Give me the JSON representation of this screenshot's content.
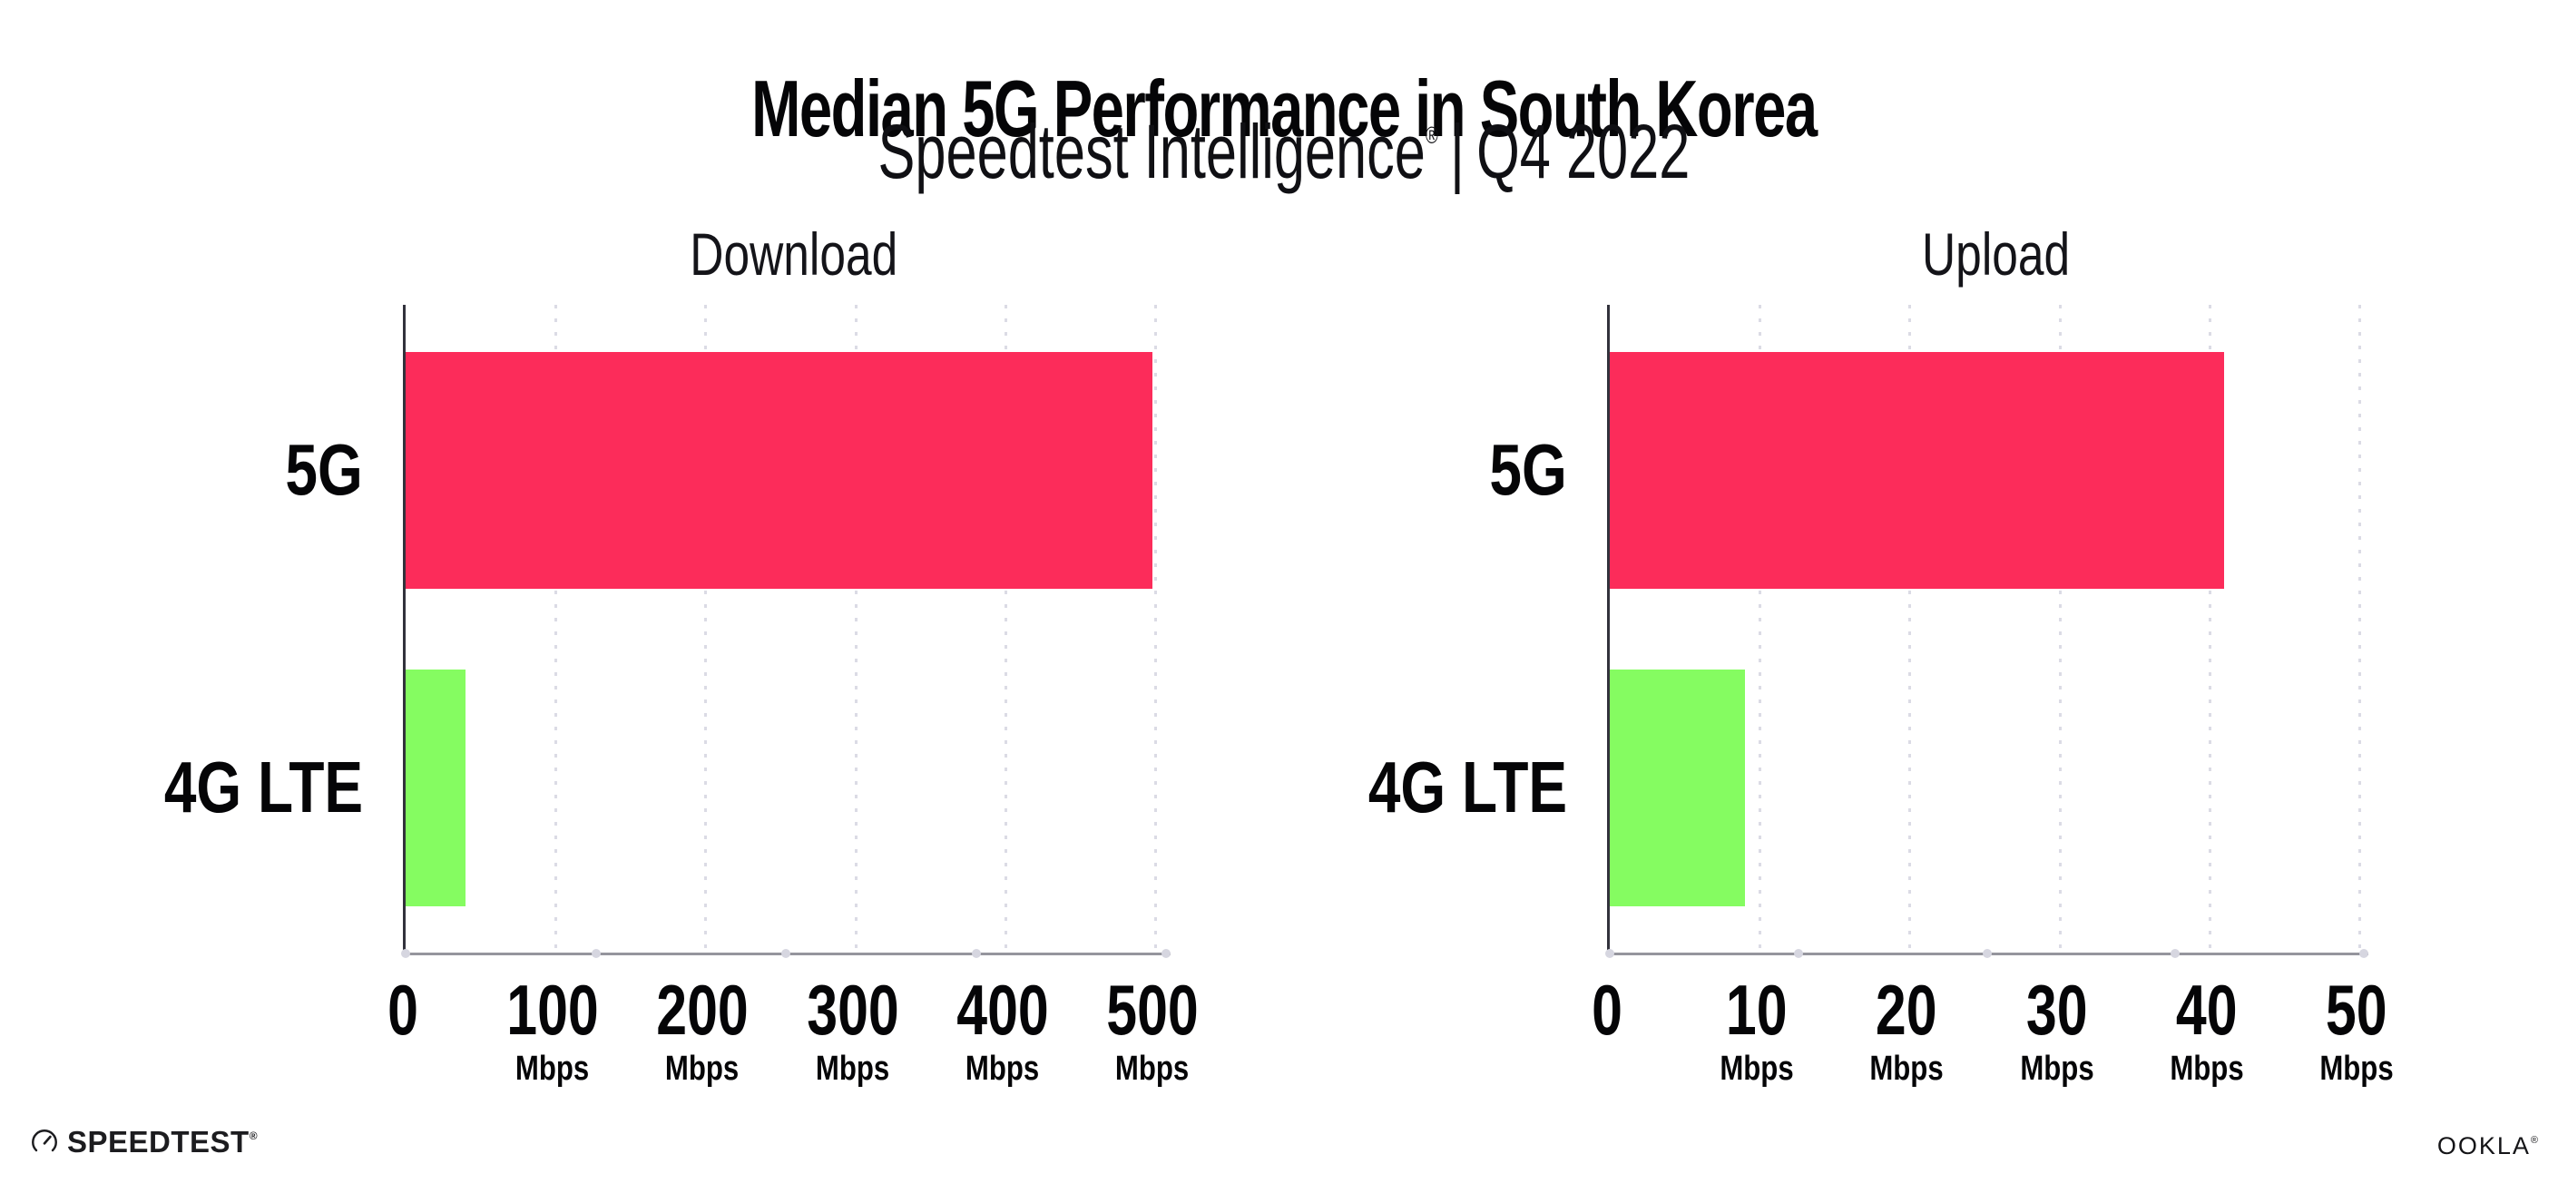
{
  "header": {
    "title": "Median 5G Performance in South Korea",
    "subtitle_brand": "Speedtest Intelligence",
    "subtitle_registered": "®",
    "subtitle_separator": "|",
    "subtitle_period": "Q4 2022"
  },
  "chart_data": [
    {
      "type": "bar",
      "orientation": "horizontal",
      "title": "Download",
      "categories": [
        "5G",
        "4G LTE"
      ],
      "values": [
        498,
        40
      ],
      "unit": "Mbps",
      "xlim": [
        0,
        500
      ],
      "xticks": [
        0,
        100,
        200,
        300,
        400,
        500
      ],
      "bar_colors": [
        "#FC2C5A",
        "#85FC61"
      ],
      "grid": "vertical-dotted",
      "legend": "none"
    },
    {
      "type": "bar",
      "orientation": "horizontal",
      "title": "Upload",
      "categories": [
        "5G",
        "4G LTE"
      ],
      "values": [
        41,
        9
      ],
      "unit": "Mbps",
      "xlim": [
        0,
        50
      ],
      "xticks": [
        0,
        10,
        20,
        30,
        40,
        50
      ],
      "bar_colors": [
        "#FC2C5A",
        "#85FC61"
      ],
      "grid": "vertical-dotted",
      "legend": "none"
    }
  ],
  "colors": {
    "bar_5g": "#FC2C5A",
    "bar_4g_lte": "#85FC61",
    "gridline": "#DBDBE5",
    "y_axis": "#32323C",
    "x_axis": "#95959D",
    "text": "#050507"
  },
  "footer": {
    "speedtest_logo_text": "SPEEDTEST",
    "speedtest_registered": "®",
    "ookla_logo_text": "OOKLA",
    "ookla_registered": "®"
  }
}
